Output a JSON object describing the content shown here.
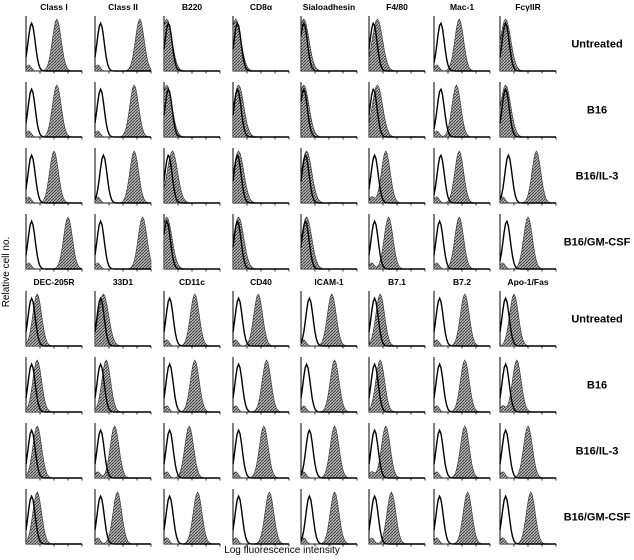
{
  "axes": {
    "xlabel": "Log fluorescence intensity",
    "ylabel": "Relative cell no."
  },
  "colors": {
    "filled": "#555555",
    "outline": "#000000",
    "background": "#ffffff"
  },
  "chart_data": [
    {
      "type": "histogram-grid",
      "panel": "top",
      "markers": [
        "Class I",
        "Class II",
        "B220",
        "CD8α",
        "Sialoadhesin",
        "F4/80",
        "Mac-1",
        "FcγIIR"
      ],
      "conditions": [
        "Untreated",
        "B16",
        "B16/IL-3",
        "B16/GM-CSF"
      ],
      "series": [
        {
          "name": "Untreated",
          "filled_peak": [
            0.55,
            0.8,
            0.05,
            0.05,
            0.05,
            0.15,
            0.45,
            0.1
          ],
          "control_peak": [
            0.1,
            0.1,
            0.08,
            0.08,
            0.05,
            0.08,
            0.12,
            0.1
          ]
        },
        {
          "name": "B16",
          "filled_peak": [
            0.55,
            0.7,
            0.05,
            0.1,
            0.05,
            0.15,
            0.4,
            0.1
          ],
          "control_peak": [
            0.1,
            0.1,
            0.08,
            0.08,
            0.05,
            0.08,
            0.12,
            0.1
          ]
        },
        {
          "name": "B16/IL-3",
          "filled_peak": [
            0.5,
            0.7,
            0.15,
            0.1,
            0.1,
            0.3,
            0.45,
            0.65
          ],
          "control_peak": [
            0.1,
            0.15,
            0.08,
            0.08,
            0.08,
            0.1,
            0.12,
            0.15
          ]
        },
        {
          "name": "B16/GM-CSF",
          "filled_peak": [
            0.75,
            0.85,
            0.05,
            0.1,
            0.1,
            0.35,
            0.45,
            0.5
          ],
          "control_peak": [
            0.1,
            0.1,
            0.05,
            0.08,
            0.08,
            0.1,
            0.1,
            0.12
          ]
        }
      ]
    },
    {
      "type": "histogram-grid",
      "panel": "bottom",
      "markers": [
        "DEC-205R",
        "33D1",
        "CD11c",
        "CD40",
        "ICAM-1",
        "B7.1",
        "B7.2",
        "Apo-1/Fas"
      ],
      "conditions": [
        "Untreated",
        "B16",
        "B16/IL-3",
        "B16/GM-CSF"
      ],
      "series": [
        {
          "name": "Untreated",
          "filled_peak": [
            0.2,
            0.15,
            0.55,
            0.45,
            0.55,
            0.2,
            0.55,
            0.25
          ],
          "control_peak": [
            0.1,
            0.1,
            0.1,
            0.1,
            0.15,
            0.1,
            0.1,
            0.1
          ]
        },
        {
          "name": "B16",
          "filled_peak": [
            0.2,
            0.2,
            0.55,
            0.6,
            0.6,
            0.2,
            0.55,
            0.3
          ],
          "control_peak": [
            0.1,
            0.1,
            0.1,
            0.1,
            0.1,
            0.1,
            0.1,
            0.1
          ]
        },
        {
          "name": "B16/IL-3",
          "filled_peak": [
            0.2,
            0.35,
            0.45,
            0.55,
            0.6,
            0.3,
            0.55,
            0.5
          ],
          "control_peak": [
            0.1,
            0.1,
            0.1,
            0.1,
            0.15,
            0.1,
            0.1,
            0.1
          ]
        },
        {
          "name": "B16/GM-CSF",
          "filled_peak": [
            0.2,
            0.4,
            0.6,
            0.65,
            0.6,
            0.4,
            0.6,
            0.55
          ],
          "control_peak": [
            0.1,
            0.1,
            0.1,
            0.1,
            0.15,
            0.1,
            0.1,
            0.1
          ]
        }
      ]
    }
  ]
}
